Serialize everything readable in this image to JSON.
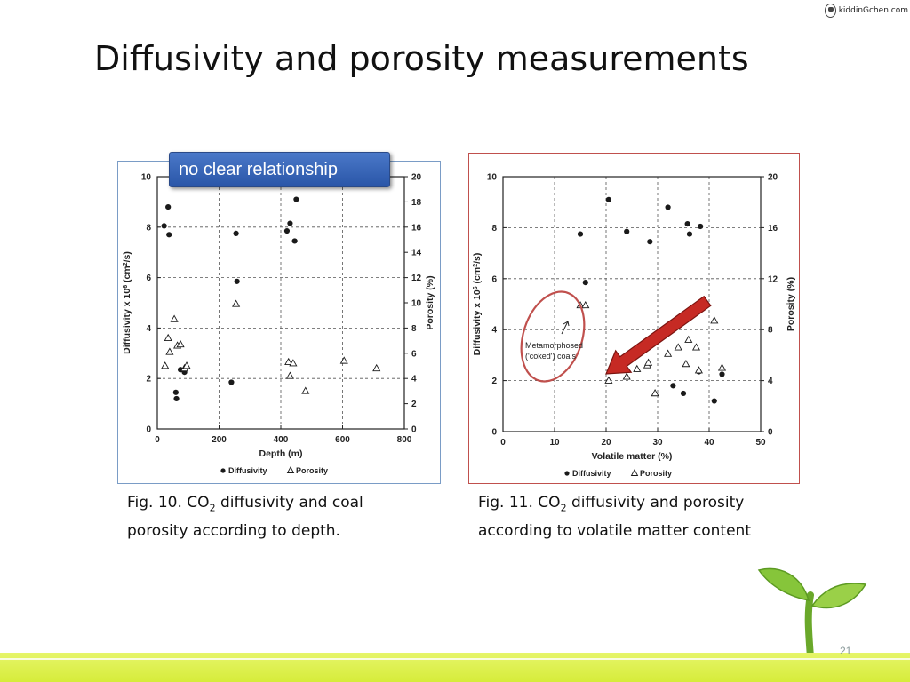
{
  "slide": {
    "title": "Diffusivity and porosity measurements",
    "logo_text": "kiddinGchen.com",
    "callout": "no clear relationship",
    "page_number": "21",
    "caption1": {
      "prefix": "Fig. 10. CO",
      "sub": "2",
      "suffix": " diffusivity and coal",
      "line2": "porosity according to depth."
    },
    "caption2": {
      "prefix": "Fig. 11. CO",
      "sub": "2",
      "suffix": " diffusivity and porosity",
      "line2": "according to volatile matter content"
    }
  },
  "chart_data": [
    {
      "type": "scatter",
      "xlabel": "Depth (m)",
      "ylabel": "Diffusivity x 10^6 (cm^2/s)",
      "y2label": "Porosity (%)",
      "xlim": [
        0,
        800
      ],
      "ylim": [
        0,
        10
      ],
      "y2lim": [
        0,
        20
      ],
      "xticks": [
        0,
        200,
        400,
        600,
        800
      ],
      "yticks": [
        0,
        2,
        4,
        6,
        8,
        10
      ],
      "y2ticks": [
        0,
        2,
        4,
        6,
        8,
        10,
        12,
        14,
        16,
        18,
        20
      ],
      "grid": true,
      "legend": {
        "placement": "bottom",
        "items": [
          "Diffusivity",
          "Porosity"
        ]
      },
      "series": [
        {
          "name": "Diffusivity",
          "marker": "filled-circle",
          "axis": "left",
          "x": [
            22,
            35,
            38,
            60,
            62,
            75,
            88,
            240,
            255,
            258,
            420,
            430,
            445,
            450
          ],
          "y": [
            8.05,
            8.8,
            7.7,
            1.45,
            1.2,
            2.35,
            2.25,
            1.85,
            7.75,
            5.85,
            7.85,
            8.15,
            7.45,
            9.1
          ]
        },
        {
          "name": "Porosity",
          "marker": "open-triangle",
          "axis": "right",
          "x": [
            25,
            35,
            40,
            55,
            65,
            75,
            88,
            95,
            255,
            425,
            430,
            440,
            480,
            605,
            710
          ],
          "y": [
            5.0,
            7.2,
            6.1,
            8.7,
            6.6,
            6.7,
            4.8,
            5.0,
            9.9,
            5.3,
            4.2,
            5.2,
            3.0,
            5.4,
            4.8
          ]
        }
      ]
    },
    {
      "type": "scatter",
      "xlabel": "Volatile matter (%)",
      "ylabel": "Diffusivity x 10^6 (cm^2/s)",
      "y2label": "Porosity (%)",
      "xlim": [
        0,
        50
      ],
      "ylim": [
        0,
        10
      ],
      "y2lim": [
        0,
        20
      ],
      "xticks": [
        0,
        10,
        20,
        30,
        40,
        50
      ],
      "yticks": [
        0,
        2,
        4,
        6,
        8,
        10
      ],
      "y2ticks": [
        0,
        4,
        8,
        12,
        16,
        20
      ],
      "grid": true,
      "legend": {
        "placement": "bottom",
        "items": [
          "Diffusivity",
          "Porosity"
        ]
      },
      "annotation": {
        "text": [
          "Metamorphosed",
          "('coked') coals"
        ]
      },
      "series": [
        {
          "name": "Diffusivity",
          "marker": "filled-circle",
          "axis": "left",
          "x": [
            15,
            16,
            20.5,
            24,
            28.5,
            32,
            33,
            35,
            35.8,
            36.2,
            38,
            38.3,
            41,
            42.5
          ],
          "y": [
            7.75,
            5.85,
            9.1,
            7.85,
            7.45,
            8.8,
            1.8,
            1.5,
            8.15,
            7.75,
            2.35,
            8.05,
            1.2,
            2.25
          ]
        },
        {
          "name": "Porosity",
          "marker": "open-triangle",
          "axis": "right",
          "x": [
            15,
            16,
            20.5,
            24,
            26,
            28,
            28.2,
            29.5,
            32,
            34,
            35.5,
            36,
            37.5,
            38,
            41,
            42.5
          ],
          "y": [
            9.9,
            9.9,
            4.0,
            4.3,
            4.9,
            5.2,
            5.4,
            3.0,
            6.1,
            6.6,
            5.3,
            7.2,
            6.6,
            4.8,
            8.7,
            5.0
          ]
        }
      ]
    }
  ],
  "colors": {
    "marker": "#1a1a1a",
    "grid": "#555555",
    "fig1_border": "#7a9cc6",
    "fig2_border": "#c0504d",
    "callout": "#3a66b8",
    "arrow": "#c62a24",
    "ellipse": "#c0504d",
    "ground": "#dcef48"
  }
}
